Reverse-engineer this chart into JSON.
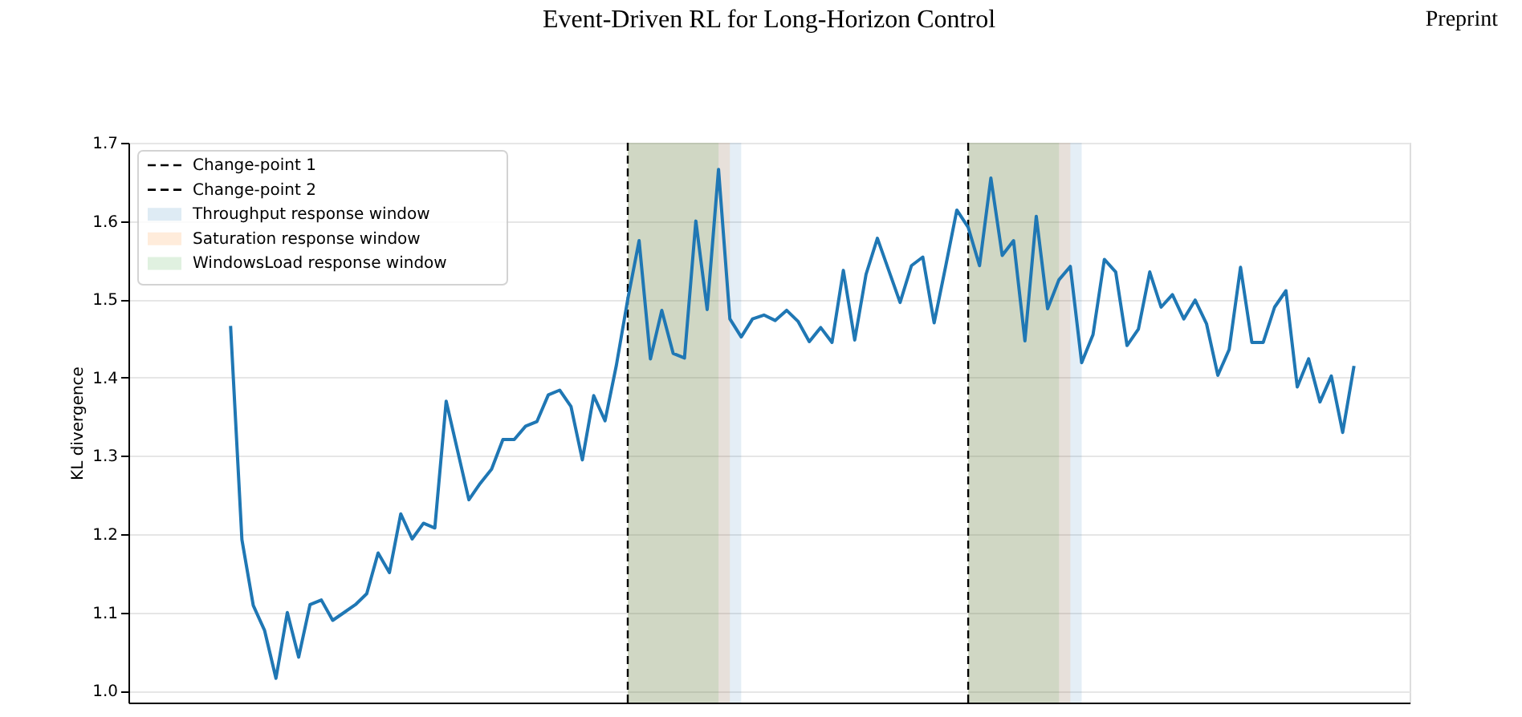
{
  "chart_data": {
    "type": "line",
    "title": "Event-Driven RL for Long-Horizon Control",
    "annotations": [
      "Preprint",
      "Change-point 1",
      "Change-point 2",
      "Throughput response window",
      "Saturation response window",
      "WindowsLoad response window"
    ],
    "ylabel": "KL divergence",
    "categories": [
      null,
      null,
      null,
      null,
      null,
      null,
      null,
      null,
      null,
      null,
      null,
      null,
      null,
      null,
      null,
      null,
      null,
      null,
      null,
      null,
      null,
      null,
      null,
      null,
      null,
      null,
      null,
      null,
      null,
      null,
      null,
      null,
      null,
      null,
      null,
      null,
      null,
      null,
      null,
      null,
      null,
      null,
      null,
      null,
      null,
      null,
      null,
      null,
      null,
      null,
      null,
      null,
      null,
      null,
      null,
      null,
      null,
      null,
      null,
      null,
      null,
      null,
      null,
      null,
      null,
      null,
      null,
      null,
      null,
      null,
      null,
      null,
      null,
      null,
      null,
      null,
      null,
      null,
      null,
      null,
      null,
      null,
      null,
      null,
      null,
      null,
      null,
      null,
      null,
      null,
      null,
      null,
      null,
      null,
      null,
      null,
      null,
      null,
      null,
      null
    ],
    "series": [
      {
        "color": "#1f77b4",
        "values": [
          1.466,
          1.193,
          1.109,
          1.077,
          1.016,
          1.1,
          1.043,
          1.11,
          1.116,
          1.09,
          1.1,
          1.11,
          1.124,
          1.176,
          1.151,
          1.226,
          1.194,
          1.214,
          1.208,
          1.37,
          1.307,
          1.244,
          1.265,
          1.283,
          1.321,
          1.321,
          1.338,
          1.344,
          1.378,
          1.384,
          1.363,
          1.295,
          1.377,
          1.345,
          1.416,
          1.5,
          1.575,
          1.424,
          1.486,
          1.431,
          1.425,
          1.6,
          1.487,
          1.666,
          1.475,
          1.452,
          1.475,
          1.48,
          1.473,
          1.486,
          1.472,
          1.446,
          1.464,
          1.445,
          1.537,
          1.448,
          1.532,
          1.578,
          1.537,
          1.496,
          1.543,
          1.554,
          1.47,
          1.541,
          1.614,
          1.592,
          1.543,
          1.655,
          1.556,
          1.575,
          1.447,
          1.606,
          1.488,
          1.525,
          1.542,
          1.419,
          1.455,
          1.551,
          1.535,
          1.441,
          1.462,
          1.535,
          1.49,
          1.506,
          1.475,
          1.499,
          1.469,
          1.403,
          1.436,
          1.541,
          1.445,
          1.445,
          1.49,
          1.511,
          1.388,
          1.424,
          1.369,
          1.402,
          1.33,
          1.415
        ]
      }
    ],
    "ylim": [
      0.985,
      1.7
    ],
    "yticks": [
      {
        "value": 1,
        "label": "1.0"
      },
      1.1,
      1.2,
      1.3,
      1.4,
      1.5,
      1.6,
      1.7
    ],
    "tick_labels": "y",
    "grid": "y",
    "line_style": "solid"
  }
}
